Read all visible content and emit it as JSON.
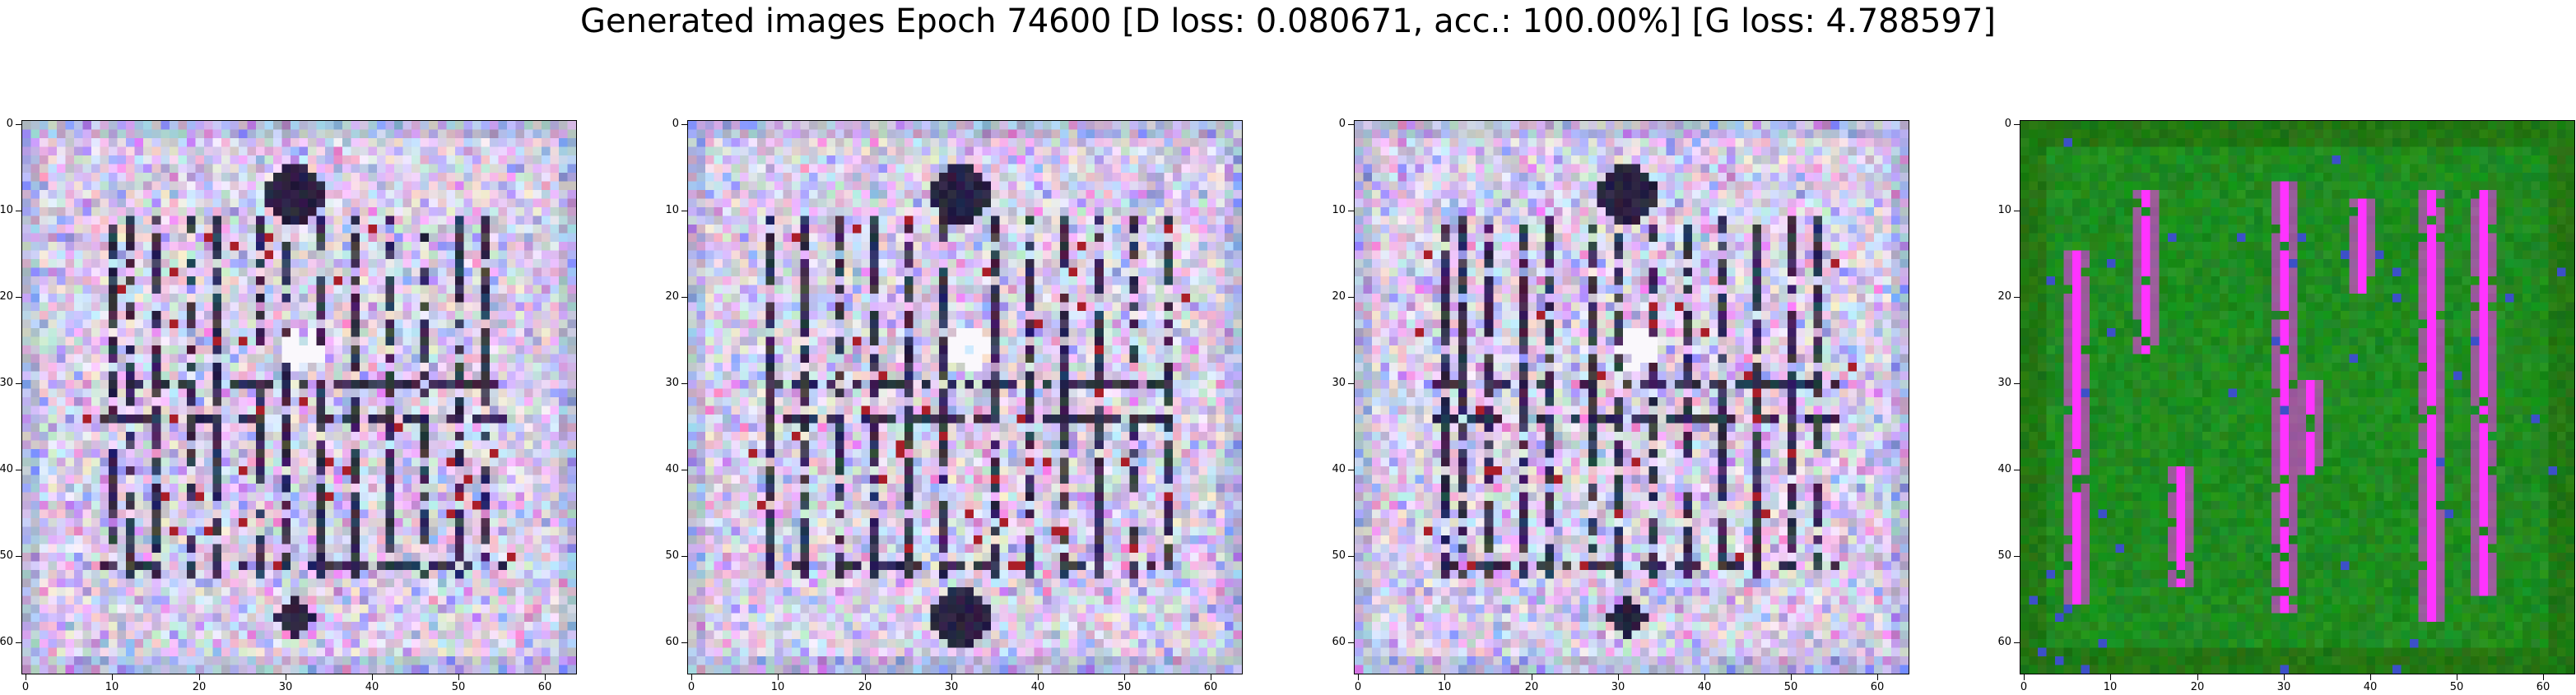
{
  "figure": {
    "title": "Generated images Epoch 74600 [D loss: 0.080671, acc.: 100.00%] [G loss: 4.788597]"
  },
  "panels": [
    {
      "id": "sample-1",
      "content": "purple-white noisy grid pattern with dark vertical stripes",
      "palette": "lavender"
    },
    {
      "id": "sample-2",
      "content": "purple-white noisy grid pattern with dark blobs at top and bottom",
      "palette": "lavender"
    },
    {
      "id": "sample-3",
      "content": "purple-white noisy grid pattern with dark vertical stripes",
      "palette": "lavender"
    },
    {
      "id": "sample-4",
      "content": "green background with magenta vertical streaks",
      "palette": "green-magenta"
    }
  ],
  "axes": {
    "x_ticks": [
      "0",
      "10",
      "20",
      "30",
      "40",
      "50",
      "60"
    ],
    "y_ticks": [
      "0",
      "10",
      "20",
      "30",
      "40",
      "50",
      "60"
    ],
    "pixel_range": [
      0,
      63
    ]
  },
  "colors": {
    "lavender_base": "#d9cfe8",
    "green_base": "#1f8c1f",
    "magenta": "#ff33ff",
    "dark": "#1a1433"
  }
}
